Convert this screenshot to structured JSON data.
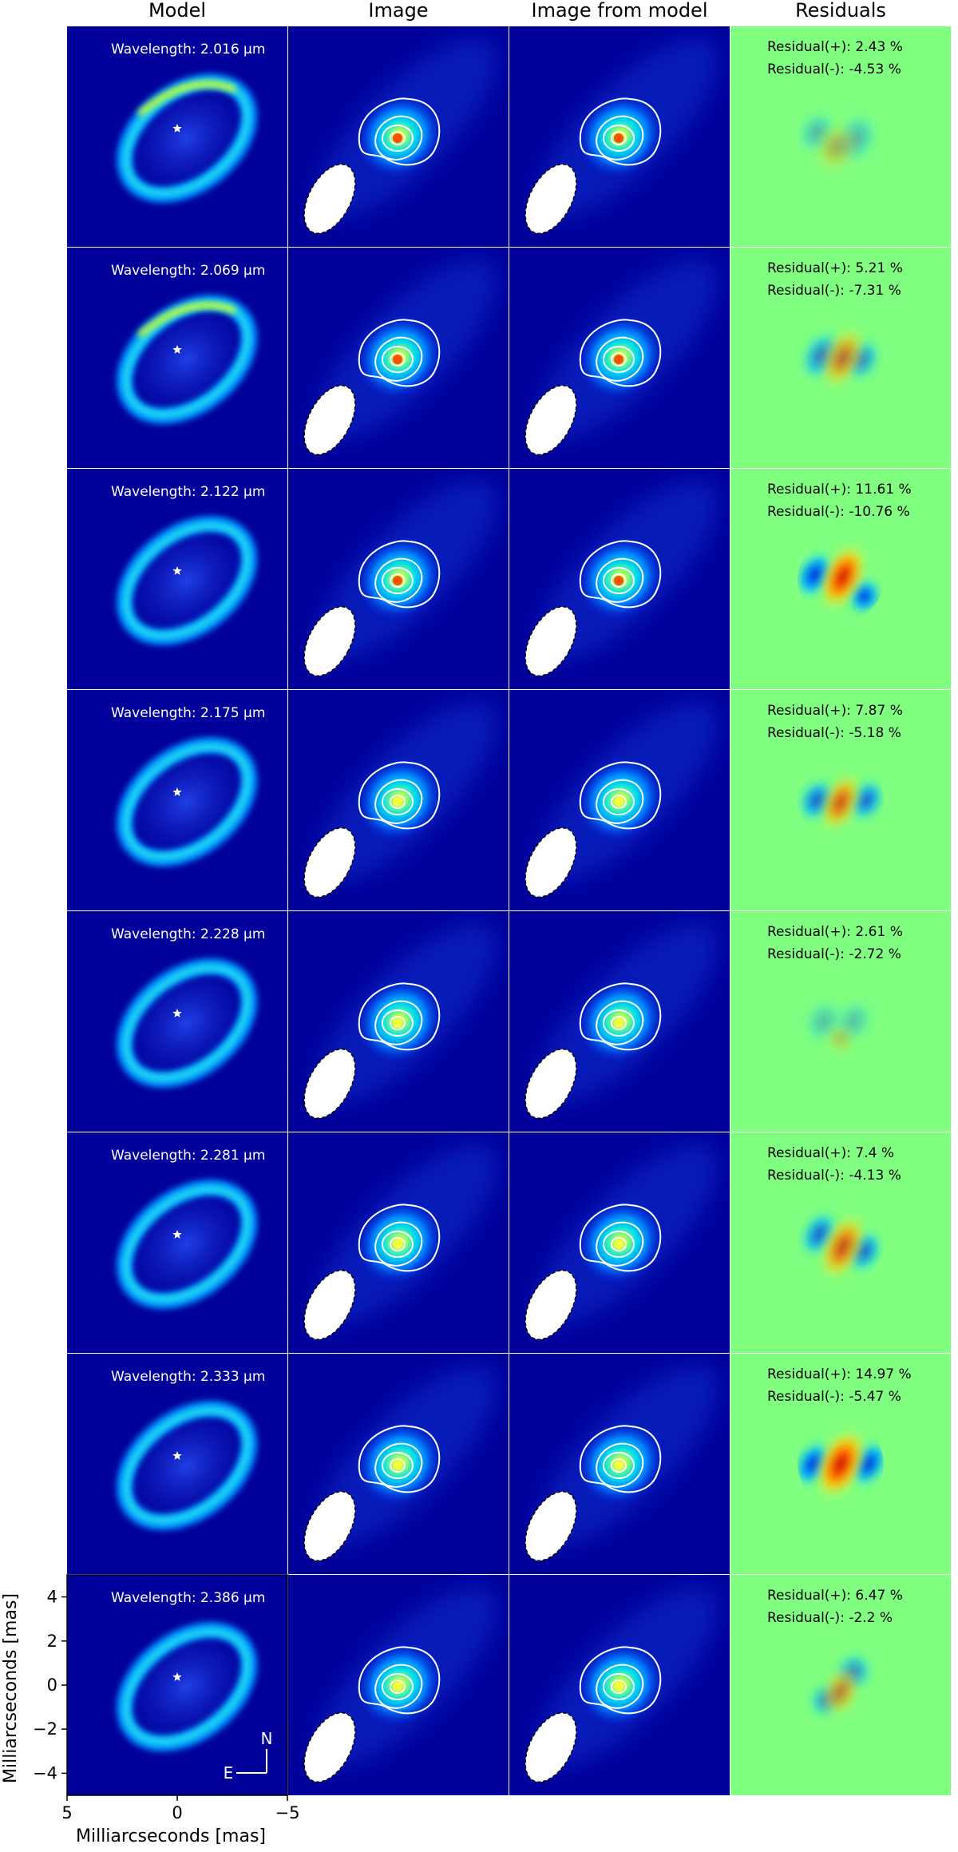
{
  "chart_data": {
    "type": "image_grid",
    "columns": [
      "Model",
      "Image",
      "Image from model",
      "Residuals"
    ],
    "wavelength_prefix": "Wavelength: ",
    "wavelength_unit": "μm",
    "residual_pos_prefix": "Residual(+): ",
    "residual_neg_prefix": "Residual(-): ",
    "residual_suffix": " %",
    "rows": [
      {
        "wavelength": "2.016",
        "residual_pos": "2.43",
        "residual_neg": "-4.53"
      },
      {
        "wavelength": "2.069",
        "residual_pos": "5.21",
        "residual_neg": "-7.31"
      },
      {
        "wavelength": "2.122",
        "residual_pos": "11.61",
        "residual_neg": "-10.76"
      },
      {
        "wavelength": "2.175",
        "residual_pos": "7.87",
        "residual_neg": "-5.18"
      },
      {
        "wavelength": "2.228",
        "residual_pos": "2.61",
        "residual_neg": "-2.72"
      },
      {
        "wavelength": "2.281",
        "residual_pos": "7.4",
        "residual_neg": "-4.13"
      },
      {
        "wavelength": "2.333",
        "residual_pos": "14.97",
        "residual_neg": "-5.47"
      },
      {
        "wavelength": "2.386",
        "residual_pos": "6.47",
        "residual_neg": "-2.2"
      }
    ],
    "xlabel": "Milliarcseconds [mas]",
    "ylabel": "Milliarcseconds [mas]",
    "xlim": [
      5,
      -5
    ],
    "ylim": [
      -5,
      5
    ],
    "xticks": [
      "5",
      "0",
      "−5"
    ],
    "yticks": [
      "4",
      "2",
      "0",
      "−2",
      "−4"
    ],
    "compass": {
      "north": "N",
      "east": "E"
    }
  }
}
